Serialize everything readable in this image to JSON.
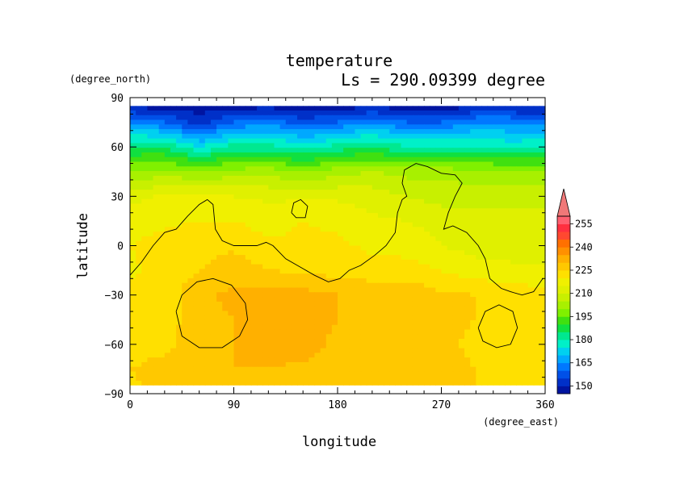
{
  "chart_data": {
    "type": "heatmap",
    "title": "temperature",
    "subtitle": "Ls = 290.09399 degree",
    "xlabel": "longitude",
    "ylabel": "latitude",
    "x_units": "(degree_east)",
    "y_units": "(degree_north)",
    "xlim": [
      0,
      360
    ],
    "ylim": [
      -90,
      90
    ],
    "x_ticks": [
      "0",
      "90",
      "180",
      "270",
      "360"
    ],
    "y_ticks": [
      "90",
      "60",
      "30",
      "0",
      "−30",
      "−60",
      "−90"
    ],
    "x_tick_values": [
      0,
      90,
      180,
      270,
      360
    ],
    "y_tick_values": [
      90,
      60,
      30,
      0,
      -30,
      -60,
      -90
    ],
    "colorbar": {
      "levels": [
        145,
        150,
        155,
        160,
        165,
        170,
        175,
        180,
        185,
        190,
        195,
        200,
        205,
        210,
        215,
        220,
        225,
        230,
        235,
        240,
        245,
        250,
        255,
        260
      ],
      "labels": [
        "255",
        "240",
        "225",
        "210",
        "195",
        "180",
        "165",
        "150"
      ],
      "label_values": [
        255,
        240,
        225,
        210,
        195,
        180,
        165,
        150
      ],
      "colors": [
        "#0014a0",
        "#0030c8",
        "#0050e8",
        "#0078ff",
        "#00a8ff",
        "#00d0f0",
        "#00f0c8",
        "#00e890",
        "#10e040",
        "#40e010",
        "#80f000",
        "#a8f000",
        "#c8f000",
        "#e0f000",
        "#f0f000",
        "#ffe000",
        "#ffc800",
        "#ffb000",
        "#ff9000",
        "#ff7000",
        "#ff4830",
        "#ff3040",
        "#ff6070"
      ],
      "extend_color": "#f07878"
    },
    "lon": [
      0,
      30,
      60,
      90,
      120,
      150,
      180,
      210,
      240,
      270,
      300,
      330,
      360
    ],
    "lat": [
      85,
      75,
      60,
      45,
      30,
      15,
      0,
      -15,
      -30,
      -45,
      -60,
      -75,
      -85
    ],
    "values": [
      [
        148,
        148,
        148,
        148,
        148,
        148,
        148,
        148,
        148,
        148,
        148,
        148,
        148
      ],
      [
        165,
        160,
        152,
        160,
        163,
        157,
        160,
        165,
        160,
        160,
        165,
        165,
        162
      ],
      [
        185,
        185,
        175,
        182,
        182,
        178,
        182,
        185,
        180,
        180,
        180,
        178,
        180
      ],
      [
        200,
        202,
        200,
        202,
        203,
        200,
        203,
        205,
        203,
        203,
        202,
        202,
        200
      ],
      [
        213,
        216,
        217,
        215,
        214,
        214,
        214,
        213,
        210,
        208,
        208,
        208,
        208
      ],
      [
        218,
        219,
        220,
        220,
        218,
        220,
        219,
        216,
        215,
        213,
        212,
        212,
        212
      ],
      [
        220,
        222,
        223,
        224,
        221,
        221,
        221,
        219,
        218,
        215,
        213,
        213,
        213
      ],
      [
        219,
        222,
        225,
        228,
        225,
        224,
        223,
        222,
        222,
        220,
        217,
        216,
        216
      ],
      [
        221,
        222,
        229,
        231,
        233,
        232,
        230,
        229,
        229,
        226,
        225,
        224,
        221
      ],
      [
        221,
        222,
        229,
        230,
        232,
        232,
        230,
        230,
        229,
        226,
        225,
        224,
        221
      ],
      [
        221,
        223,
        229,
        230,
        233,
        232,
        229,
        230,
        229,
        226,
        224,
        224,
        221
      ],
      [
        225,
        228,
        229,
        230,
        230,
        229,
        229,
        229,
        229,
        227,
        225,
        224,
        224
      ],
      [
        224,
        226,
        228,
        229,
        229,
        229,
        229,
        229,
        229,
        226,
        225,
        224,
        224
      ]
    ]
  }
}
